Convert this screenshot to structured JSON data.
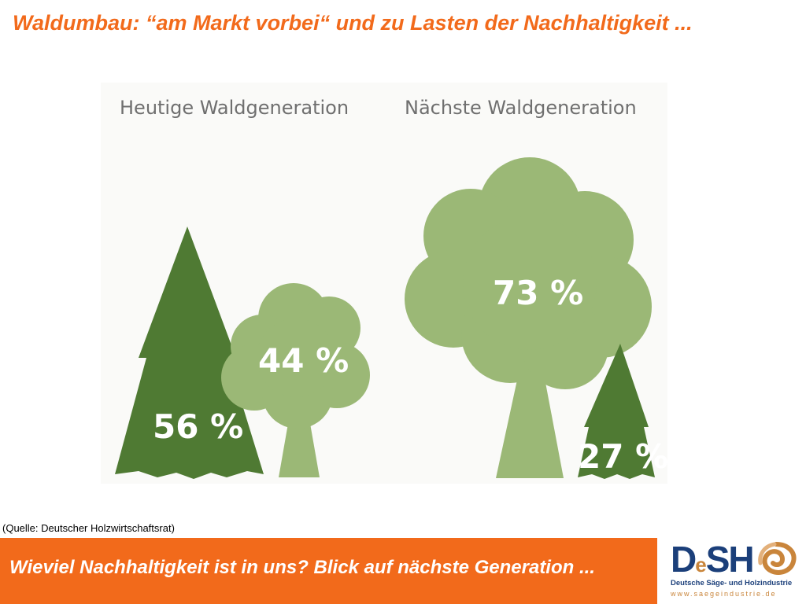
{
  "title": "Waldumbau: “am Markt vorbei“ und zu Lasten der Nachhaltigkeit ...",
  "figure": {
    "groups": [
      {
        "heading": "Heutige Waldgeneration",
        "conifer_pct": "56 %",
        "deciduous_pct": "44 %"
      },
      {
        "heading": "Nächste Waldgeneration",
        "deciduous_pct": "73 %",
        "conifer_pct": "27 %"
      }
    ],
    "colors": {
      "conifer": "#4f7a33",
      "deciduous": "#9bb876",
      "panel_bg": "#fafaf8"
    }
  },
  "source": "(Quelle: Deutscher Holzwirtschaftsrat)",
  "footer": {
    "text": "Wieviel Nachhaltigkeit ist in uns? Blick auf nächste Generation ..."
  },
  "logo": {
    "mark_a": "D",
    "mark_b": "e",
    "mark_c": "SH",
    "line1": "Deutsche Säge- und Holzindustrie",
    "line2": "www.saegeindustrie.de"
  }
}
